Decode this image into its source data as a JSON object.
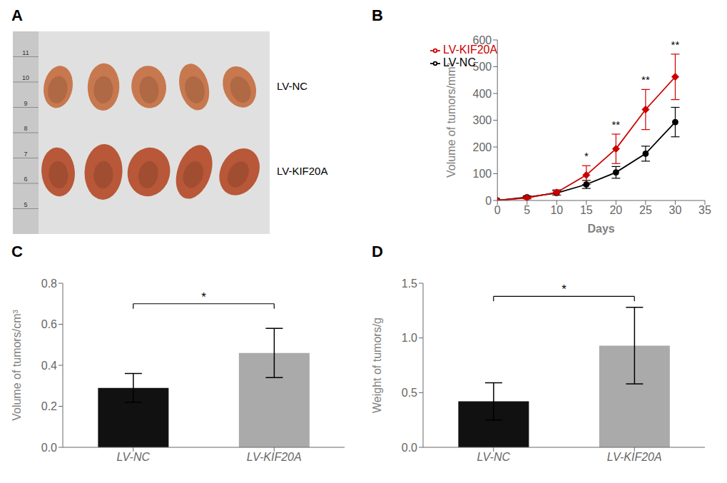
{
  "chart_data": [
    {
      "type": "image",
      "title": "A",
      "annotations": [
        "LV-NC",
        "LV-KIF20A"
      ],
      "colors": [
        "#c8784e",
        "#b85838"
      ],
      "ylim": [
        4,
        12
      ],
      "yticks": [
        5,
        6,
        7,
        8,
        9,
        10,
        11
      ]
    },
    {
      "type": "line",
      "title": "B",
      "x": [
        0,
        5,
        10,
        15,
        20,
        25,
        30
      ],
      "xlabel": "Days",
      "ylabel": "Volume of tumors/mm³",
      "xlim": [
        0,
        35
      ],
      "xticks": [
        0,
        5,
        10,
        15,
        20,
        25,
        30,
        35
      ],
      "ylim": [
        0,
        600
      ],
      "yticks": [
        0,
        100,
        200,
        300,
        400,
        500,
        600
      ],
      "grid": false,
      "legend": "upper left",
      "series": [
        {
          "name": "LV-NC",
          "color": "#000000",
          "marker": "circle",
          "values": [
            0,
            12,
            28,
            60,
            105,
            175,
            293
          ],
          "errors": [
            0,
            5,
            8,
            15,
            22,
            28,
            55
          ]
        },
        {
          "name": "LV-KIF20A",
          "color": "#cc0000",
          "marker": "diamond",
          "values": [
            0,
            10,
            30,
            95,
            193,
            340,
            462
          ],
          "errors": [
            0,
            4,
            10,
            35,
            55,
            75,
            85
          ]
        }
      ],
      "annotations": [
        {
          "x": 15,
          "text": "*",
          "series": "LV-KIF20A"
        },
        {
          "x": 20,
          "text": "**",
          "series": "LV-KIF20A"
        },
        {
          "x": 25,
          "text": "**",
          "series": "LV-KIF20A"
        },
        {
          "x": 30,
          "text": "**",
          "series": "LV-KIF20A"
        }
      ]
    },
    {
      "type": "bar",
      "title": "C",
      "categories": [
        "LV-NC",
        "LV-KIF20A"
      ],
      "values": [
        0.29,
        0.46
      ],
      "errors": [
        0.07,
        0.12
      ],
      "colors": [
        "#111111",
        "#aaaaaa"
      ],
      "ylabel": "Volume of tumors/cm³",
      "ylim": [
        0,
        0.8
      ],
      "yticks": [
        {
          "value": 0,
          "label": "0.0"
        },
        0.2,
        0.4,
        0.6,
        0.8
      ],
      "grid": false,
      "annotations": [
        {
          "y": 0.7,
          "text": "*",
          "from": "LV-NC",
          "to": "LV-KIF20A"
        }
      ]
    },
    {
      "type": "bar",
      "title": "D",
      "categories": [
        "LV-NC",
        "LV-KIF20A"
      ],
      "values": [
        0.42,
        0.93
      ],
      "errors": [
        0.17,
        0.35
      ],
      "colors": [
        "#111111",
        "#aaaaaa"
      ],
      "ylabel": "Weight of tumors/g",
      "ylim": [
        0,
        1.5
      ],
      "yticks": [
        {
          "value": 0,
          "label": "0.0"
        },
        0.5,
        {
          "value": 1,
          "label": "1.0"
        },
        1.5
      ],
      "grid": false,
      "annotations": [
        {
          "y": 1.38,
          "text": "*",
          "from": "LV-NC",
          "to": "LV-KIF20A"
        }
      ]
    }
  ]
}
